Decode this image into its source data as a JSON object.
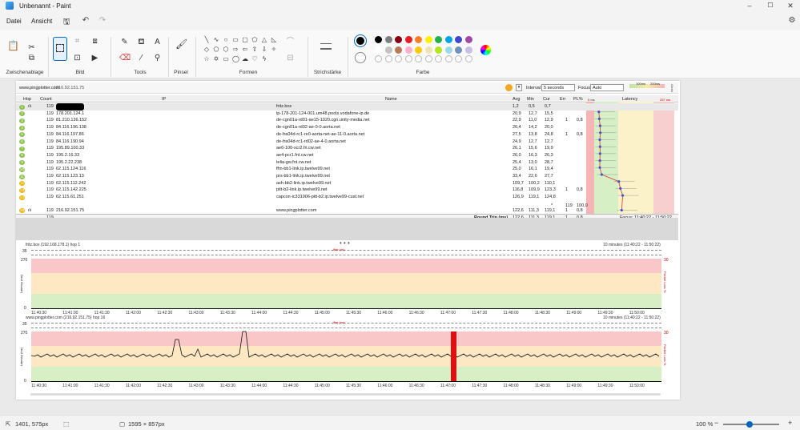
{
  "window": {
    "title": "Unbenannt - Paint",
    "min": "–",
    "max": "☐",
    "close": "✕"
  },
  "menu": {
    "file": "Datei",
    "view": "Ansicht"
  },
  "ribbon": {
    "groups": [
      "Zwischenablage",
      "Bild",
      "Tools",
      "Pinsel",
      "Formen",
      "Strichstärke",
      "Farbe"
    ],
    "colors_row1": [
      "#000000",
      "#7f7f7f",
      "#880015",
      "#ed1c24",
      "#ff7f27",
      "#fff200",
      "#22b14c",
      "#00a2e8",
      "#3f48cc",
      "#a349a4"
    ],
    "colors_row2": [
      "#ffffff",
      "#c3c3c3",
      "#b97a57",
      "#ffaec9",
      "#ffc90e",
      "#efe4b0",
      "#b5e61d",
      "#99d9ea",
      "#7092be",
      "#c8bfe7"
    ]
  },
  "pingplotter": {
    "target": "www.pingplotter.com",
    "target_ip": "/ 216.92.151.75",
    "interval_label": "Interval",
    "interval_value": "5 seconds",
    "focus_label": "Focus",
    "focus_value": "Auto",
    "legend_100": "100ms",
    "legend_200": "200ms",
    "alerts": "Alerts",
    "columns": {
      "hop": "Hop",
      "count": "Count",
      "ip": "IP",
      "name": "Name",
      "avg": "Avg",
      "min": "Min",
      "cur": "Cur",
      "err": "Err",
      "pl": "PL%",
      "latency": "Latency"
    },
    "latency_scale_0": "0 ms",
    "latency_scale_max": "257 ms",
    "hops": [
      {
        "hop": "1",
        "count": "119",
        "ip": "192.168.178.1",
        "name": "fritz.box",
        "avg": "1,2",
        "min": "0,5",
        "cur": "0,7",
        "err": "",
        "pl": ""
      },
      {
        "hop": "2",
        "count": "119",
        "ip": "178.201.124.1",
        "name": "ip-178-201-124-001.um48.pools.vodafone-ip.de",
        "avg": "20,9",
        "min": "12,7",
        "cur": "15,5",
        "err": "",
        "pl": ""
      },
      {
        "hop": "3",
        "count": "119",
        "ip": "81.210.136.152",
        "name": "de-cgn01a-rd01-ae15-1020.cgn.unity-media.net",
        "avg": "22,9",
        "min": "11,0",
        "cur": "12,9",
        "err": "1",
        "pl": "0,8"
      },
      {
        "hop": "4",
        "count": "119",
        "ip": "84.116.196.138",
        "name": "de-cgn01a-rd02-ae-0-0.aorta.net",
        "avg": "26,4",
        "min": "14,2",
        "cur": "20,0",
        "err": "",
        "pl": ""
      },
      {
        "hop": "5",
        "count": "119",
        "ip": "84.116.197.86",
        "name": "de-fra04d-rc1-re0-aorta-net-ae-11-0.aorta.net",
        "avg": "27,5",
        "min": "13,8",
        "cur": "24,8",
        "err": "1",
        "pl": "0,8"
      },
      {
        "hop": "6",
        "count": "119",
        "ip": "84.116.190.94",
        "name": "de-fra04d-rc1-rd02-ae-4-0.aorta.net",
        "avg": "24,9",
        "min": "12,7",
        "cur": "12,7",
        "err": "",
        "pl": ""
      },
      {
        "hop": "7",
        "count": "119",
        "ip": "195.89.100.33",
        "name": "ae6-100-xcr2.fri.cw.net",
        "avg": "26,1",
        "min": "15,6",
        "cur": "19,9",
        "err": "",
        "pl": ""
      },
      {
        "hop": "8",
        "count": "119",
        "ip": "195.2.16.33",
        "name": "ae4-pcr1.fnt.cw.net",
        "avg": "26,0",
        "min": "16,3",
        "cur": "26,3",
        "err": "",
        "pl": ""
      },
      {
        "hop": "9",
        "count": "119",
        "ip": "195.2.22.238",
        "name": "telia-gw.fnt.cw.net",
        "avg": "25,4",
        "min": "13,0",
        "cur": "28,7",
        "err": "",
        "pl": ""
      },
      {
        "hop": "10",
        "count": "119",
        "ip": "62.115.124.116",
        "name": "ffm-bb1-link.ip.twelve99.net",
        "avg": "25,0",
        "min": "16,1",
        "cur": "19,4",
        "err": "",
        "pl": ""
      },
      {
        "hop": "11",
        "count": "119",
        "ip": "62.115.123.13",
        "name": "prs-bb1-link.ip.twelve99.net",
        "avg": "33,4",
        "min": "22,6",
        "cur": "27,7",
        "err": "",
        "pl": ""
      },
      {
        "hop": "12",
        "count": "119",
        "ip": "62.115.112.242",
        "name": "ash-bb2-link.ip.twelve99.net",
        "avg": "109,7",
        "min": "100,2",
        "cur": "110,1",
        "err": "",
        "pl": ""
      },
      {
        "hop": "13",
        "count": "119",
        "ip": "62.115.142.225",
        "name": "pitt-b2-link.ip.twelve99.net",
        "avg": "116,8",
        "min": "109,9",
        "cur": "123,3",
        "err": "1",
        "pl": "0,8"
      },
      {
        "hop": "14",
        "count": "119",
        "ip": "62.115.61.251",
        "name": "capcon-ic331906-pitt-b2.ip.twelve99-cust.net",
        "avg": "126,9",
        "min": "119,1",
        "cur": "124,8",
        "err": "",
        "pl": ""
      }
    ],
    "star_row": {
      "cur": "*",
      "err": "119",
      "pl": "100,0"
    },
    "final_hop": {
      "hop": "16",
      "count": "119",
      "ip": "216.92.151.75",
      "name": "www.pingplotter.com",
      "avg": "122,6",
      "min": "111,3",
      "cur": "119,1",
      "err": "1",
      "pl": "0,8"
    },
    "summary": {
      "count": "119",
      "label": "Round Trip (ms)",
      "avg": "122,6",
      "min": "111,3",
      "cur": "119,1",
      "err": "1",
      "pl": "0,8",
      "focus": "Focus: 11:40:22 - 11:50:22"
    },
    "graph1": {
      "title": "fritz.box (192.168.178.1) hop 1",
      "range": "10 minutes (11:40:22 - 11:50:22)",
      "jitter": "Jitter (ms)",
      "y_top": "35",
      "y_270": "270",
      "y_0": "0",
      "right_30": "30",
      "ylabel": "Latency (ms)",
      "rlabel": "Packet Loss %"
    },
    "graph2": {
      "title": "www.pingplotter.com (216.92.151.75) hop 16",
      "range": "10 minutes (11:40:22 - 11:50:22)",
      "jitter": "Jitter (ms)",
      "y_top": "35",
      "y_270": "270",
      "y_0": "0",
      "right_30": "30",
      "ylabel": "Latency (ms)",
      "rlabel": "Packet Loss %"
    },
    "time_ticks": [
      "11:40:30",
      "11:41:00",
      "11:41:30",
      "11:42:00",
      "11:42:30",
      "11:43:00",
      "11:43:30",
      "11:44:00",
      "11:44:30",
      "11:45:00",
      "11:45:30",
      "11:46:00",
      "11:46:30",
      "11:47:00",
      "11:47:30",
      "11:48:00",
      "11:48:30",
      "11:49:00",
      "11:49:30",
      "11:50:00"
    ]
  },
  "status": {
    "cursor": "1401, 575px",
    "size": "1595 × 857px",
    "zoom": "100 %"
  }
}
